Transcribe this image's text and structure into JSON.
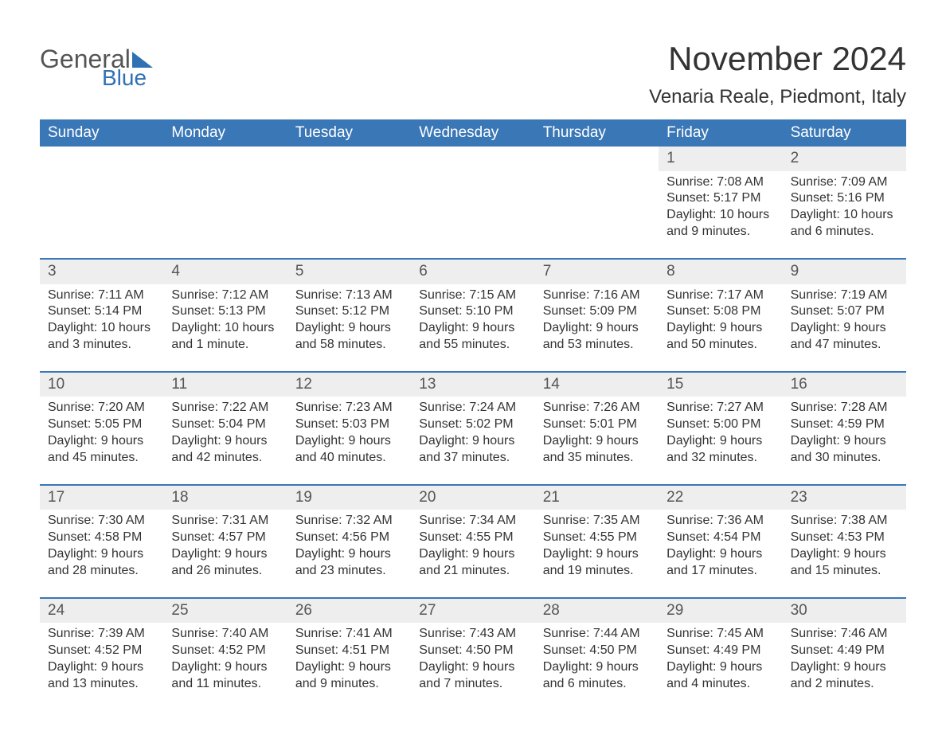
{
  "brand": {
    "part1": "General",
    "part2": "Blue"
  },
  "title": "November 2024",
  "location": "Venaria Reale, Piedmont, Italy",
  "colors": {
    "header_bg": "#3a77b6",
    "header_text": "#ffffff",
    "band_bg": "#eeeeee",
    "border": "#3a77b6",
    "text": "#333333",
    "brand_gray": "#555555",
    "brand_blue": "#2f71b3",
    "page_bg": "#ffffff"
  },
  "daysOfWeek": [
    "Sunday",
    "Monday",
    "Tuesday",
    "Wednesday",
    "Thursday",
    "Friday",
    "Saturday"
  ],
  "weeks": [
    [
      null,
      null,
      null,
      null,
      null,
      {
        "n": "1",
        "sunrise": "Sunrise: 7:08 AM",
        "sunset": "Sunset: 5:17 PM",
        "daylight": "Daylight: 10 hours and 9 minutes."
      },
      {
        "n": "2",
        "sunrise": "Sunrise: 7:09 AM",
        "sunset": "Sunset: 5:16 PM",
        "daylight": "Daylight: 10 hours and 6 minutes."
      }
    ],
    [
      {
        "n": "3",
        "sunrise": "Sunrise: 7:11 AM",
        "sunset": "Sunset: 5:14 PM",
        "daylight": "Daylight: 10 hours and 3 minutes."
      },
      {
        "n": "4",
        "sunrise": "Sunrise: 7:12 AM",
        "sunset": "Sunset: 5:13 PM",
        "daylight": "Daylight: 10 hours and 1 minute."
      },
      {
        "n": "5",
        "sunrise": "Sunrise: 7:13 AM",
        "sunset": "Sunset: 5:12 PM",
        "daylight": "Daylight: 9 hours and 58 minutes."
      },
      {
        "n": "6",
        "sunrise": "Sunrise: 7:15 AM",
        "sunset": "Sunset: 5:10 PM",
        "daylight": "Daylight: 9 hours and 55 minutes."
      },
      {
        "n": "7",
        "sunrise": "Sunrise: 7:16 AM",
        "sunset": "Sunset: 5:09 PM",
        "daylight": "Daylight: 9 hours and 53 minutes."
      },
      {
        "n": "8",
        "sunrise": "Sunrise: 7:17 AM",
        "sunset": "Sunset: 5:08 PM",
        "daylight": "Daylight: 9 hours and 50 minutes."
      },
      {
        "n": "9",
        "sunrise": "Sunrise: 7:19 AM",
        "sunset": "Sunset: 5:07 PM",
        "daylight": "Daylight: 9 hours and 47 minutes."
      }
    ],
    [
      {
        "n": "10",
        "sunrise": "Sunrise: 7:20 AM",
        "sunset": "Sunset: 5:05 PM",
        "daylight": "Daylight: 9 hours and 45 minutes."
      },
      {
        "n": "11",
        "sunrise": "Sunrise: 7:22 AM",
        "sunset": "Sunset: 5:04 PM",
        "daylight": "Daylight: 9 hours and 42 minutes."
      },
      {
        "n": "12",
        "sunrise": "Sunrise: 7:23 AM",
        "sunset": "Sunset: 5:03 PM",
        "daylight": "Daylight: 9 hours and 40 minutes."
      },
      {
        "n": "13",
        "sunrise": "Sunrise: 7:24 AM",
        "sunset": "Sunset: 5:02 PM",
        "daylight": "Daylight: 9 hours and 37 minutes."
      },
      {
        "n": "14",
        "sunrise": "Sunrise: 7:26 AM",
        "sunset": "Sunset: 5:01 PM",
        "daylight": "Daylight: 9 hours and 35 minutes."
      },
      {
        "n": "15",
        "sunrise": "Sunrise: 7:27 AM",
        "sunset": "Sunset: 5:00 PM",
        "daylight": "Daylight: 9 hours and 32 minutes."
      },
      {
        "n": "16",
        "sunrise": "Sunrise: 7:28 AM",
        "sunset": "Sunset: 4:59 PM",
        "daylight": "Daylight: 9 hours and 30 minutes."
      }
    ],
    [
      {
        "n": "17",
        "sunrise": "Sunrise: 7:30 AM",
        "sunset": "Sunset: 4:58 PM",
        "daylight": "Daylight: 9 hours and 28 minutes."
      },
      {
        "n": "18",
        "sunrise": "Sunrise: 7:31 AM",
        "sunset": "Sunset: 4:57 PM",
        "daylight": "Daylight: 9 hours and 26 minutes."
      },
      {
        "n": "19",
        "sunrise": "Sunrise: 7:32 AM",
        "sunset": "Sunset: 4:56 PM",
        "daylight": "Daylight: 9 hours and 23 minutes."
      },
      {
        "n": "20",
        "sunrise": "Sunrise: 7:34 AM",
        "sunset": "Sunset: 4:55 PM",
        "daylight": "Daylight: 9 hours and 21 minutes."
      },
      {
        "n": "21",
        "sunrise": "Sunrise: 7:35 AM",
        "sunset": "Sunset: 4:55 PM",
        "daylight": "Daylight: 9 hours and 19 minutes."
      },
      {
        "n": "22",
        "sunrise": "Sunrise: 7:36 AM",
        "sunset": "Sunset: 4:54 PM",
        "daylight": "Daylight: 9 hours and 17 minutes."
      },
      {
        "n": "23",
        "sunrise": "Sunrise: 7:38 AM",
        "sunset": "Sunset: 4:53 PM",
        "daylight": "Daylight: 9 hours and 15 minutes."
      }
    ],
    [
      {
        "n": "24",
        "sunrise": "Sunrise: 7:39 AM",
        "sunset": "Sunset: 4:52 PM",
        "daylight": "Daylight: 9 hours and 13 minutes."
      },
      {
        "n": "25",
        "sunrise": "Sunrise: 7:40 AM",
        "sunset": "Sunset: 4:52 PM",
        "daylight": "Daylight: 9 hours and 11 minutes."
      },
      {
        "n": "26",
        "sunrise": "Sunrise: 7:41 AM",
        "sunset": "Sunset: 4:51 PM",
        "daylight": "Daylight: 9 hours and 9 minutes."
      },
      {
        "n": "27",
        "sunrise": "Sunrise: 7:43 AM",
        "sunset": "Sunset: 4:50 PM",
        "daylight": "Daylight: 9 hours and 7 minutes."
      },
      {
        "n": "28",
        "sunrise": "Sunrise: 7:44 AM",
        "sunset": "Sunset: 4:50 PM",
        "daylight": "Daylight: 9 hours and 6 minutes."
      },
      {
        "n": "29",
        "sunrise": "Sunrise: 7:45 AM",
        "sunset": "Sunset: 4:49 PM",
        "daylight": "Daylight: 9 hours and 4 minutes."
      },
      {
        "n": "30",
        "sunrise": "Sunrise: 7:46 AM",
        "sunset": "Sunset: 4:49 PM",
        "daylight": "Daylight: 9 hours and 2 minutes."
      }
    ]
  ]
}
